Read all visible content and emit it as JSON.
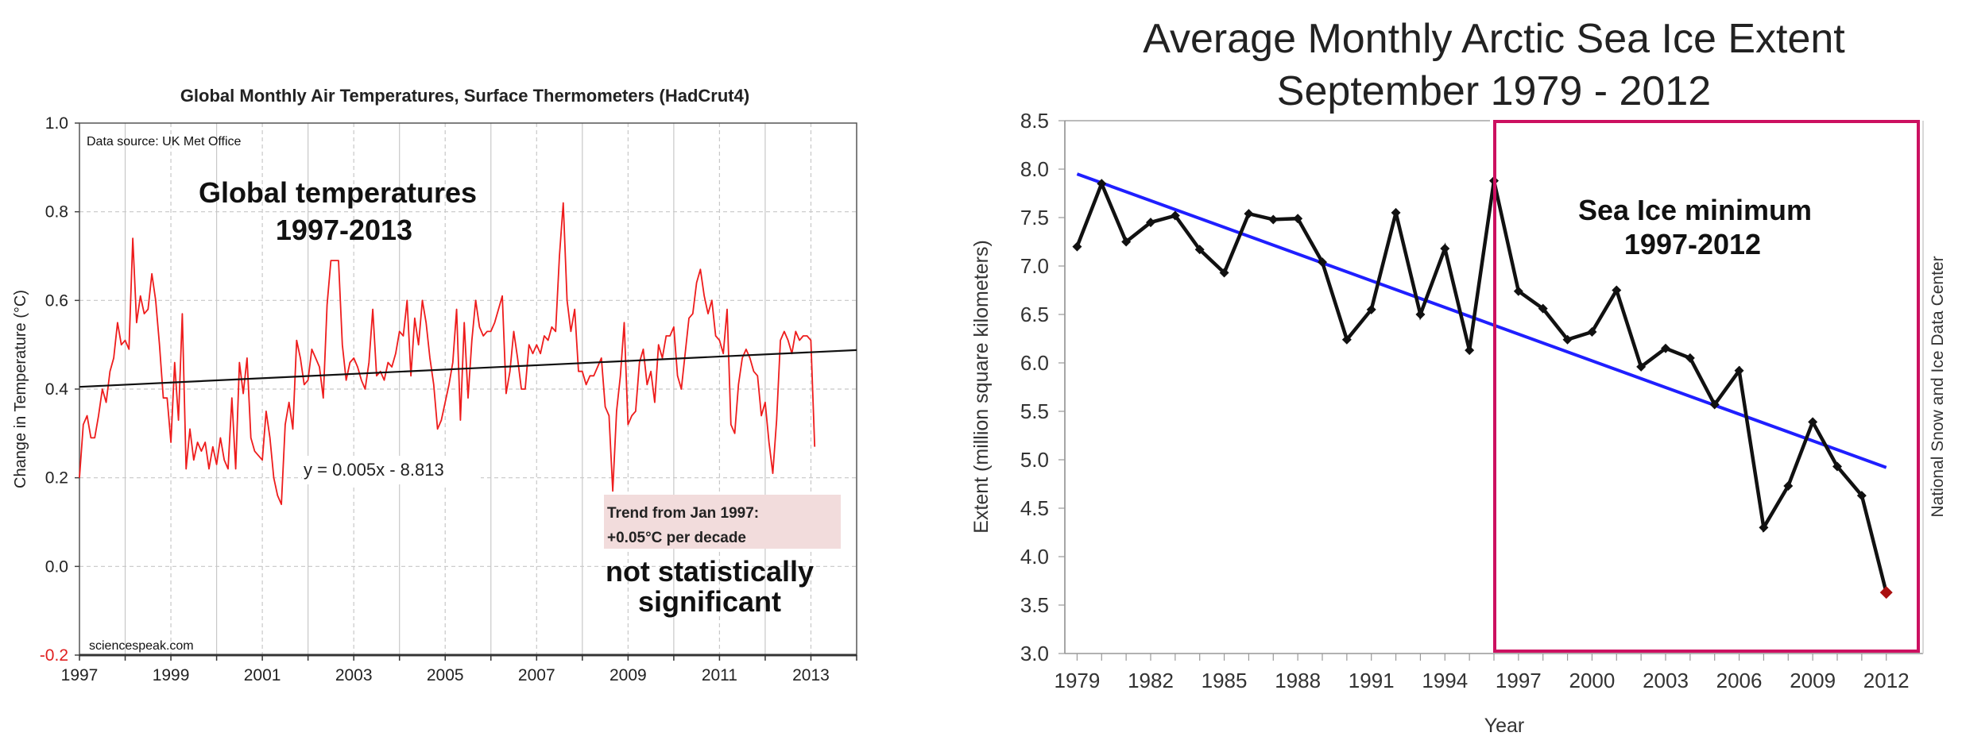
{
  "chart_data": [
    {
      "type": "line",
      "title": "Global Monthly Air Temperatures, Surface Thermometers (HadCrut4)",
      "xlabel": "",
      "ylabel": "Change in Temperature  (°C)",
      "xlim": [
        1997,
        2014
      ],
      "ylim": [
        -0.2,
        1.0
      ],
      "grid": true,
      "x_ticks": [
        "1997",
        "1999",
        "2001",
        "2003",
        "2005",
        "2007",
        "2009",
        "2011",
        "2013"
      ],
      "y_ticks": [
        "1.0",
        "0.8",
        "0.6",
        "0.4",
        "0.2",
        "0.0",
        "-0.2"
      ],
      "source_note": "Data source: UK Met Office",
      "credit": "sciencespeak.com",
      "overlay_title_line1": "Global temperatures",
      "overlay_title_line2": "1997-2013",
      "trend_equation": "y = 0.005x - 8.813",
      "trend_box_line1": "Trend from Jan 1997:",
      "trend_box_line2": "+0.05°C  per decade",
      "note_line1": "not statistically",
      "note_line2": "significant",
      "colors": {
        "series": "#ee1c1c",
        "trend": "#111111",
        "trend_box": "#f2dcdc"
      },
      "trend": {
        "start": [
          1997.0,
          0.405
        ],
        "end": [
          2014.0,
          0.488
        ]
      },
      "series": [
        {
          "name": "HadCrut4 monthly anomaly",
          "start_year": 1997.0,
          "step_years": 0.08333,
          "values": [
            0.2,
            0.32,
            0.34,
            0.29,
            0.29,
            0.34,
            0.4,
            0.37,
            0.44,
            0.47,
            0.55,
            0.5,
            0.51,
            0.49,
            0.74,
            0.55,
            0.61,
            0.57,
            0.58,
            0.66,
            0.6,
            0.5,
            0.38,
            0.38,
            0.28,
            0.46,
            0.33,
            0.57,
            0.22,
            0.31,
            0.24,
            0.28,
            0.26,
            0.28,
            0.22,
            0.27,
            0.23,
            0.29,
            0.24,
            0.22,
            0.38,
            0.22,
            0.46,
            0.39,
            0.47,
            0.29,
            0.26,
            0.25,
            0.24,
            0.35,
            0.29,
            0.2,
            0.16,
            0.14,
            0.32,
            0.37,
            0.31,
            0.51,
            0.47,
            0.41,
            0.42,
            0.49,
            0.47,
            0.45,
            0.38,
            0.59,
            0.69,
            0.69,
            0.69,
            0.5,
            0.42,
            0.46,
            0.47,
            0.45,
            0.42,
            0.4,
            0.46,
            0.58,
            0.43,
            0.44,
            0.42,
            0.46,
            0.45,
            0.48,
            0.53,
            0.52,
            0.6,
            0.43,
            0.56,
            0.5,
            0.6,
            0.55,
            0.47,
            0.41,
            0.31,
            0.33,
            0.37,
            0.41,
            0.46,
            0.58,
            0.33,
            0.55,
            0.38,
            0.51,
            0.6,
            0.54,
            0.52,
            0.53,
            0.53,
            0.55,
            0.58,
            0.61,
            0.39,
            0.44,
            0.53,
            0.47,
            0.4,
            0.4,
            0.5,
            0.48,
            0.5,
            0.48,
            0.52,
            0.51,
            0.54,
            0.53,
            0.7,
            0.82,
            0.6,
            0.53,
            0.58,
            0.44,
            0.44,
            0.41,
            0.43,
            0.43,
            0.45,
            0.47,
            0.36,
            0.34,
            0.17,
            0.35,
            0.43,
            0.55,
            0.32,
            0.34,
            0.35,
            0.46,
            0.49,
            0.41,
            0.44,
            0.37,
            0.5,
            0.47,
            0.52,
            0.52,
            0.54,
            0.43,
            0.4,
            0.48,
            0.56,
            0.57,
            0.64,
            0.67,
            0.61,
            0.57,
            0.6,
            0.52,
            0.51,
            0.48,
            0.58,
            0.32,
            0.3,
            0.41,
            0.47,
            0.49,
            0.47,
            0.44,
            0.43,
            0.34,
            0.37,
            0.28,
            0.21,
            0.33,
            0.51,
            0.53,
            0.51,
            0.48,
            0.53,
            0.51,
            0.52,
            0.52,
            0.51,
            0.27
          ]
        }
      ]
    },
    {
      "type": "line",
      "title": "Average Monthly Arctic Sea Ice Extent",
      "subtitle": "September 1979 - 2012",
      "xlabel": "Year",
      "ylabel": "Extent (million square kilometers)",
      "xlim": [
        1978.5,
        2013.5
      ],
      "ylim": [
        3.0,
        8.5
      ],
      "grid": false,
      "x_ticks": [
        "1979",
        "1982",
        "1985",
        "1988",
        "1991",
        "1994",
        "1997",
        "2000",
        "2003",
        "2006",
        "2009",
        "2012"
      ],
      "y_ticks": [
        "8.5",
        "8.0",
        "7.5",
        "7.0",
        "6.5",
        "6.0",
        "5.5",
        "5.0",
        "4.5",
        "4.0",
        "3.5",
        "3.0"
      ],
      "side_credit": "National Snow and Ice Data Center",
      "box_label_line1": "Sea Ice minimum",
      "box_label_line2": "1997-2012",
      "box_range": [
        1996.0,
        2013.5
      ],
      "colors": {
        "series": "#111111",
        "trend": "#1f1fff",
        "box": "#cc1060",
        "last_point": "#aa1010"
      },
      "trend": {
        "start": [
          1979,
          7.95
        ],
        "end": [
          2012,
          4.92
        ]
      },
      "x": [
        1979,
        1980,
        1981,
        1982,
        1983,
        1984,
        1985,
        1986,
        1987,
        1988,
        1989,
        1990,
        1991,
        1992,
        1993,
        1994,
        1995,
        1996,
        1997,
        1998,
        1999,
        2000,
        2001,
        2002,
        2003,
        2004,
        2005,
        2006,
        2007,
        2008,
        2009,
        2010,
        2011,
        2012
      ],
      "series": [
        {
          "name": "September extent",
          "values": [
            7.2,
            7.85,
            7.25,
            7.45,
            7.52,
            7.17,
            6.93,
            7.54,
            7.48,
            7.49,
            7.04,
            6.24,
            6.55,
            7.55,
            6.5,
            7.18,
            6.13,
            7.88,
            6.74,
            6.56,
            6.24,
            6.32,
            6.75,
            5.96,
            6.15,
            6.05,
            5.57,
            5.92,
            4.3,
            4.73,
            5.39,
            4.93,
            4.63,
            3.63
          ]
        }
      ]
    }
  ]
}
